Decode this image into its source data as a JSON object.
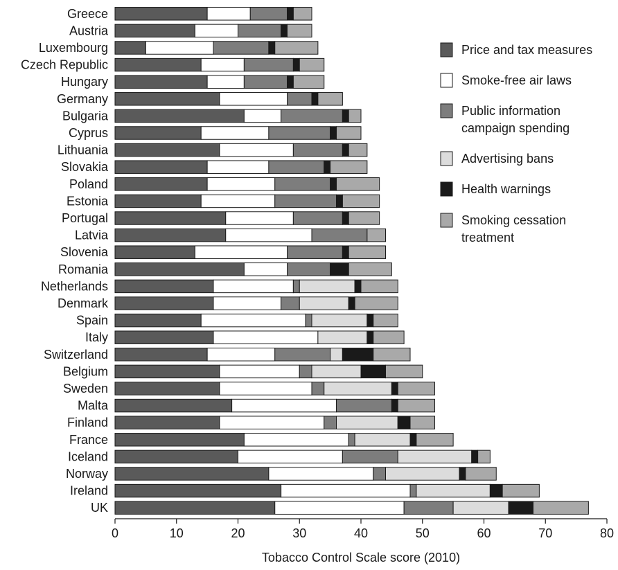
{
  "chart_data": {
    "type": "bar",
    "orientation": "horizontal",
    "stacked": true,
    "xlabel": "Tobacco Control Scale score (2010)",
    "xlim": [
      0,
      80
    ],
    "xticks": [
      "0",
      "10",
      "20",
      "30",
      "40",
      "50",
      "60",
      "70",
      "80"
    ],
    "grid": false,
    "legend_position": "right",
    "categories": [
      "Greece",
      "Austria",
      "Luxembourg",
      "Czech Republic",
      "Hungary",
      "Germany",
      "Bulgaria",
      "Cyprus",
      "Lithuania",
      "Slovakia",
      "Poland",
      "Estonia",
      "Portugal",
      "Latvia",
      "Slovenia",
      "Romania",
      "Netherlands",
      "Denmark",
      "Spain",
      "Italy",
      "Switzerland",
      "Belgium",
      "Sweden",
      "Malta",
      "Finland",
      "France",
      "Iceland",
      "Norway",
      "Ireland",
      "UK"
    ],
    "series": [
      {
        "name": "Price and tax measures",
        "color": "#5a5a5a",
        "values": [
          15,
          13,
          5,
          14,
          15,
          17,
          21,
          14,
          17,
          15,
          15,
          14,
          18,
          18,
          13,
          21,
          16,
          16,
          14,
          16,
          15,
          17,
          17,
          19,
          17,
          21,
          20,
          25,
          27,
          26
        ]
      },
      {
        "name": "Smoke-free air laws",
        "color": "#ffffff",
        "values": [
          7,
          7,
          11,
          7,
          6,
          11,
          6,
          11,
          12,
          10,
          11,
          12,
          11,
          14,
          15,
          7,
          13,
          11,
          17,
          17,
          11,
          13,
          15,
          17,
          17,
          17,
          17,
          17,
          21,
          21
        ]
      },
      {
        "name": "Public information campaign spending",
        "color": "#7d7d7d",
        "values": [
          6,
          7,
          9,
          8,
          7,
          4,
          10,
          10,
          8,
          9,
          9,
          10,
          8,
          9,
          9,
          7,
          1,
          3,
          1,
          0,
          9,
          2,
          2,
          9,
          2,
          1,
          9,
          2,
          1,
          8
        ]
      },
      {
        "name": "Advertising bans",
        "color": "#dcdcdc",
        "values": [
          0,
          0,
          0,
          0,
          0,
          0,
          0,
          0,
          0,
          0,
          0,
          0,
          0,
          0,
          0,
          0,
          9,
          8,
          9,
          8,
          2,
          8,
          11,
          0,
          10,
          9,
          12,
          12,
          12,
          9
        ]
      },
      {
        "name": "Health warnings",
        "color": "#1a1a1a",
        "values": [
          1,
          1,
          1,
          1,
          1,
          1,
          1,
          1,
          1,
          1,
          1,
          1,
          1,
          0,
          1,
          3,
          1,
          1,
          1,
          1,
          5,
          4,
          1,
          1,
          2,
          1,
          1,
          1,
          2,
          4
        ]
      },
      {
        "name": "Smoking cessation treatment",
        "color": "#a9a9a9",
        "values": [
          3,
          4,
          7,
          4,
          5,
          4,
          2,
          4,
          3,
          6,
          7,
          6,
          5,
          3,
          6,
          7,
          6,
          7,
          4,
          5,
          6,
          6,
          6,
          6,
          4,
          6,
          2,
          5,
          6,
          9
        ]
      }
    ]
  }
}
